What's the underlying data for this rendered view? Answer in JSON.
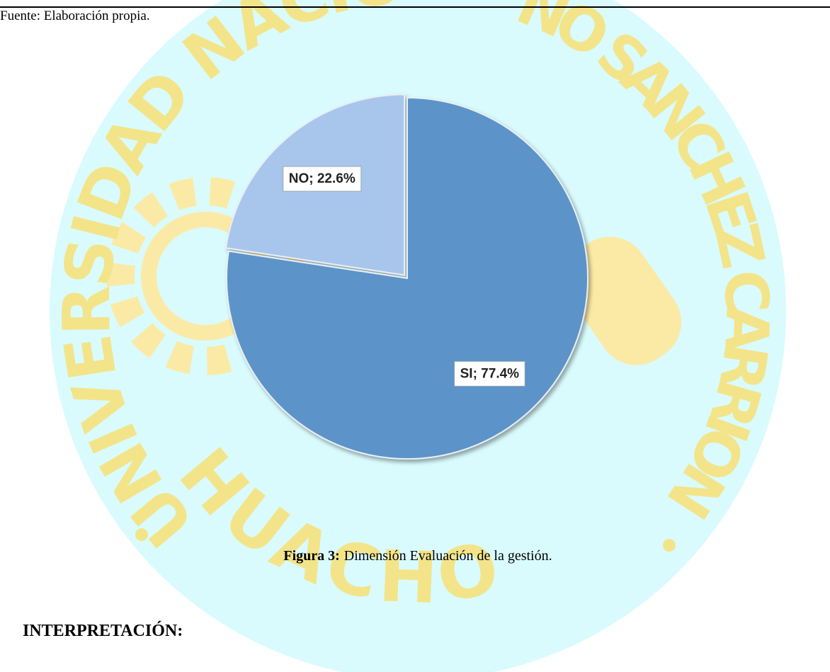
{
  "source": "Fuente: Elaboración propia.",
  "chart_data": {
    "type": "pie",
    "categories": [
      "SI",
      "NO"
    ],
    "values": [
      77.4,
      22.6
    ],
    "value_labels": [
      "SI; 77.4%",
      "NO; 22.6%"
    ],
    "colors": [
      "#5b93c9",
      "#a8c6ec"
    ]
  },
  "caption": {
    "label": "Figura 3:",
    "text": "Dimensión Evaluación de la gestión."
  },
  "heading": "INTERPRETACIÓN:",
  "watermark": {
    "left": "UNIVERSIDAD NACIO",
    "right": "NO SANCHEZ CARRION",
    "bottom": "HUACHO"
  }
}
